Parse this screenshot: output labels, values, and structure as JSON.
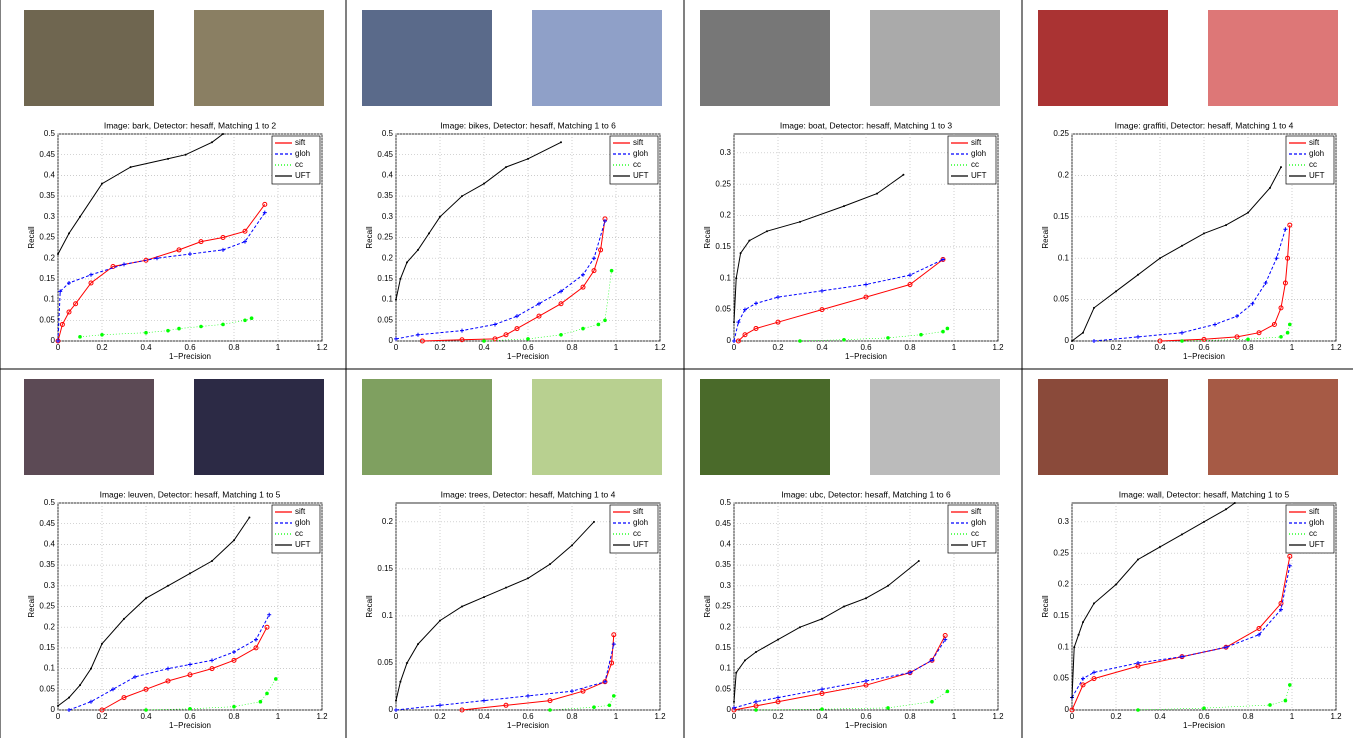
{
  "chart_data": [
    {
      "type": "line",
      "title": "Image: bark, Detector: hesaff, Matching 1 to 2",
      "xlabel": "1−Precision",
      "ylabel": "Recall",
      "xlim": [
        0,
        1.2
      ],
      "xticks": [
        0,
        0.2,
        0.4,
        0.6,
        0.8,
        1,
        1.2
      ],
      "ylim": [
        0,
        0.5
      ],
      "yticks": [
        0,
        0.05,
        0.1,
        0.15,
        0.2,
        0.25,
        0.3,
        0.35,
        0.4,
        0.45,
        0.5
      ],
      "grid": true,
      "legend": "upper right",
      "series": [
        {
          "name": "sift",
          "color": "#ff0000",
          "x": [
            0,
            0.02,
            0.05,
            0.08,
            0.15,
            0.25,
            0.4,
            0.55,
            0.65,
            0.75,
            0.85,
            0.94
          ],
          "values": [
            0,
            0.04,
            0.07,
            0.09,
            0.14,
            0.18,
            0.195,
            0.22,
            0.24,
            0.25,
            0.265,
            0.33
          ]
        },
        {
          "name": "gloh",
          "color": "#0000ff",
          "x": [
            0,
            0.01,
            0.05,
            0.15,
            0.3,
            0.45,
            0.6,
            0.75,
            0.85,
            0.94
          ],
          "values": [
            0,
            0.12,
            0.14,
            0.16,
            0.185,
            0.2,
            0.21,
            0.22,
            0.24,
            0.31
          ]
        },
        {
          "name": "cc",
          "color": "#00ff00",
          "x": [
            0.1,
            0.2,
            0.4,
            0.5,
            0.55,
            0.65,
            0.75,
            0.85,
            0.88
          ],
          "values": [
            0.01,
            0.015,
            0.02,
            0.025,
            0.03,
            0.035,
            0.04,
            0.05,
            0.055
          ]
        },
        {
          "name": "UFT",
          "color": "#000000",
          "x": [
            0,
            0.05,
            0.1,
            0.2,
            0.33,
            0.5,
            0.58,
            0.7,
            0.75
          ],
          "values": [
            0.21,
            0.26,
            0.3,
            0.38,
            0.42,
            0.44,
            0.45,
            0.48,
            0.5
          ]
        }
      ]
    },
    {
      "type": "line",
      "title": "Image: bikes, Detector: hesaff, Matching 1 to 6",
      "xlabel": "1−Precision",
      "ylabel": "Recall",
      "xlim": [
        0,
        1.2
      ],
      "xticks": [
        0,
        0.2,
        0.4,
        0.6,
        0.8,
        1,
        1.2
      ],
      "ylim": [
        0,
        0.5
      ],
      "yticks": [
        0,
        0.05,
        0.1,
        0.15,
        0.2,
        0.25,
        0.3,
        0.35,
        0.4,
        0.45,
        0.5
      ],
      "grid": true,
      "legend": "upper right",
      "series": [
        {
          "name": "sift",
          "color": "#ff0000",
          "x": [
            0.12,
            0.3,
            0.45,
            0.5,
            0.55,
            0.65,
            0.75,
            0.85,
            0.9,
            0.93,
            0.95
          ],
          "values": [
            0,
            0.003,
            0.005,
            0.015,
            0.03,
            0.06,
            0.09,
            0.13,
            0.17,
            0.22,
            0.295
          ]
        },
        {
          "name": "gloh",
          "color": "#0000ff",
          "x": [
            0,
            0.1,
            0.3,
            0.45,
            0.55,
            0.65,
            0.75,
            0.85,
            0.9,
            0.95
          ],
          "values": [
            0.005,
            0.015,
            0.025,
            0.04,
            0.06,
            0.09,
            0.12,
            0.16,
            0.2,
            0.29
          ]
        },
        {
          "name": "cc",
          "color": "#00ff00",
          "x": [
            0.4,
            0.6,
            0.75,
            0.85,
            0.92,
            0.95,
            0.98
          ],
          "values": [
            0,
            0.005,
            0.015,
            0.03,
            0.04,
            0.05,
            0.17
          ]
        },
        {
          "name": "UFT",
          "color": "#000000",
          "x": [
            0,
            0.02,
            0.05,
            0.1,
            0.15,
            0.2,
            0.3,
            0.4,
            0.5,
            0.6,
            0.75
          ],
          "values": [
            0.1,
            0.15,
            0.19,
            0.22,
            0.26,
            0.3,
            0.35,
            0.38,
            0.42,
            0.44,
            0.48
          ]
        }
      ]
    },
    {
      "type": "line",
      "title": "Image: boat, Detector: hesaff, Matching 1 to 3",
      "xlabel": "1−Precision",
      "ylabel": "Recall",
      "xlim": [
        0,
        1.2
      ],
      "xticks": [
        0,
        0.2,
        0.4,
        0.6,
        0.8,
        1,
        1.2
      ],
      "ylim": [
        0,
        0.33
      ],
      "yticks": [
        0,
        0.05,
        0.1,
        0.15,
        0.2,
        0.25,
        0.3
      ],
      "grid": true,
      "legend": "upper right",
      "series": [
        {
          "name": "sift",
          "color": "#ff0000",
          "x": [
            0.02,
            0.05,
            0.1,
            0.2,
            0.4,
            0.6,
            0.8,
            0.95
          ],
          "values": [
            0,
            0.01,
            0.02,
            0.03,
            0.05,
            0.07,
            0.09,
            0.13
          ]
        },
        {
          "name": "gloh",
          "color": "#0000ff",
          "x": [
            0,
            0.02,
            0.05,
            0.1,
            0.2,
            0.4,
            0.6,
            0.8,
            0.95
          ],
          "values": [
            0,
            0.03,
            0.05,
            0.06,
            0.07,
            0.08,
            0.09,
            0.105,
            0.13
          ]
        },
        {
          "name": "cc",
          "color": "#00ff00",
          "x": [
            0.3,
            0.5,
            0.7,
            0.85,
            0.95,
            0.97
          ],
          "values": [
            0,
            0.002,
            0.005,
            0.01,
            0.015,
            0.02
          ]
        },
        {
          "name": "UFT",
          "color": "#000000",
          "x": [
            0,
            0.01,
            0.03,
            0.07,
            0.15,
            0.3,
            0.5,
            0.65,
            0.77
          ],
          "values": [
            0.03,
            0.1,
            0.14,
            0.16,
            0.175,
            0.19,
            0.215,
            0.235,
            0.265
          ]
        }
      ]
    },
    {
      "type": "line",
      "title": "Image: graffiti, Detector: hesaff, Matching 1 to 4",
      "xlabel": "1−Precision",
      "ylabel": "Recall",
      "xlim": [
        0,
        1.2
      ],
      "xticks": [
        0,
        0.2,
        0.4,
        0.6,
        0.8,
        1,
        1.2
      ],
      "ylim": [
        0,
        0.25
      ],
      "yticks": [
        0,
        0.05,
        0.1,
        0.15,
        0.2,
        0.25
      ],
      "grid": true,
      "legend": "upper right",
      "series": [
        {
          "name": "sift",
          "color": "#ff0000",
          "x": [
            0.4,
            0.6,
            0.75,
            0.85,
            0.92,
            0.95,
            0.97,
            0.98,
            0.99
          ],
          "values": [
            0,
            0.002,
            0.005,
            0.01,
            0.02,
            0.04,
            0.07,
            0.1,
            0.14
          ]
        },
        {
          "name": "gloh",
          "color": "#0000ff",
          "x": [
            0.1,
            0.3,
            0.5,
            0.65,
            0.75,
            0.82,
            0.88,
            0.93,
            0.97
          ],
          "values": [
            0,
            0.005,
            0.01,
            0.02,
            0.03,
            0.045,
            0.07,
            0.1,
            0.135
          ]
        },
        {
          "name": "cc",
          "color": "#00ff00",
          "x": [
            0.5,
            0.8,
            0.95,
            0.98,
            0.99
          ],
          "values": [
            0,
            0.002,
            0.005,
            0.01,
            0.02
          ]
        },
        {
          "name": "UFT",
          "color": "#000000",
          "x": [
            0,
            0.05,
            0.1,
            0.2,
            0.3,
            0.4,
            0.5,
            0.6,
            0.7,
            0.8,
            0.9,
            0.95
          ],
          "values": [
            0,
            0.01,
            0.04,
            0.06,
            0.08,
            0.1,
            0.115,
            0.13,
            0.14,
            0.155,
            0.185,
            0.21
          ]
        }
      ]
    },
    {
      "type": "line",
      "title": "Image: leuven, Detector: hesaff, Matching 1 to 5",
      "xlabel": "1−Precision",
      "ylabel": "Recall",
      "xlim": [
        0,
        1.2
      ],
      "xticks": [
        0,
        0.2,
        0.4,
        0.6,
        0.8,
        1,
        1.2
      ],
      "ylim": [
        0,
        0.5
      ],
      "yticks": [
        0,
        0.05,
        0.1,
        0.15,
        0.2,
        0.25,
        0.3,
        0.35,
        0.4,
        0.45,
        0.5
      ],
      "grid": true,
      "legend": "upper right",
      "series": [
        {
          "name": "sift",
          "color": "#ff0000",
          "x": [
            0.2,
            0.3,
            0.4,
            0.5,
            0.6,
            0.7,
            0.8,
            0.9,
            0.95
          ],
          "values": [
            0,
            0.03,
            0.05,
            0.07,
            0.085,
            0.1,
            0.12,
            0.15,
            0.2
          ]
        },
        {
          "name": "gloh",
          "color": "#0000ff",
          "x": [
            0.05,
            0.15,
            0.25,
            0.35,
            0.5,
            0.6,
            0.7,
            0.8,
            0.9,
            0.96
          ],
          "values": [
            0,
            0.02,
            0.05,
            0.08,
            0.1,
            0.11,
            0.12,
            0.14,
            0.17,
            0.23
          ]
        },
        {
          "name": "cc",
          "color": "#00ff00",
          "x": [
            0.4,
            0.6,
            0.8,
            0.92,
            0.95,
            0.99
          ],
          "values": [
            0,
            0.003,
            0.008,
            0.02,
            0.04,
            0.075
          ]
        },
        {
          "name": "UFT",
          "color": "#000000",
          "x": [
            0,
            0.05,
            0.1,
            0.15,
            0.2,
            0.3,
            0.4,
            0.5,
            0.6,
            0.7,
            0.8,
            0.87
          ],
          "values": [
            0.01,
            0.03,
            0.06,
            0.1,
            0.16,
            0.22,
            0.27,
            0.3,
            0.33,
            0.36,
            0.41,
            0.465
          ]
        }
      ]
    },
    {
      "type": "line",
      "title": "Image: trees, Detector: hesaff, Matching 1 to 4",
      "xlabel": "1−Precision",
      "ylabel": "Recall",
      "xlim": [
        0,
        1.2
      ],
      "xticks": [
        0,
        0.2,
        0.4,
        0.6,
        0.8,
        1,
        1.2
      ],
      "ylim": [
        0,
        0.22
      ],
      "yticks": [
        0,
        0.05,
        0.1,
        0.15,
        0.2
      ],
      "grid": true,
      "legend": "upper right",
      "series": [
        {
          "name": "sift",
          "color": "#ff0000",
          "x": [
            0.3,
            0.5,
            0.7,
            0.85,
            0.95,
            0.98,
            0.99
          ],
          "values": [
            0,
            0.005,
            0.01,
            0.02,
            0.03,
            0.05,
            0.08
          ]
        },
        {
          "name": "gloh",
          "color": "#0000ff",
          "x": [
            0,
            0.2,
            0.4,
            0.6,
            0.8,
            0.95,
            0.99
          ],
          "values": [
            0,
            0.005,
            0.01,
            0.015,
            0.02,
            0.03,
            0.07
          ]
        },
        {
          "name": "cc",
          "color": "#00ff00",
          "x": [
            0.7,
            0.9,
            0.97,
            0.99
          ],
          "values": [
            0,
            0.003,
            0.005,
            0.015
          ]
        },
        {
          "name": "UFT",
          "color": "#000000",
          "x": [
            0,
            0.02,
            0.05,
            0.1,
            0.2,
            0.3,
            0.4,
            0.5,
            0.6,
            0.7,
            0.8,
            0.9
          ],
          "values": [
            0.01,
            0.03,
            0.05,
            0.07,
            0.095,
            0.11,
            0.12,
            0.13,
            0.14,
            0.155,
            0.175,
            0.2
          ]
        }
      ]
    },
    {
      "type": "line",
      "title": "Image: ubc, Detector: hesaff, Matching 1 to 6",
      "xlabel": "1−Precision",
      "ylabel": "Recall",
      "xlim": [
        0,
        1.2
      ],
      "xticks": [
        0,
        0.2,
        0.4,
        0.6,
        0.8,
        1,
        1.2
      ],
      "ylim": [
        0,
        0.5
      ],
      "yticks": [
        0,
        0.05,
        0.1,
        0.15,
        0.2,
        0.25,
        0.3,
        0.35,
        0.4,
        0.45,
        0.5
      ],
      "grid": true,
      "legend": "upper right",
      "series": [
        {
          "name": "sift",
          "color": "#ff0000",
          "x": [
            0,
            0.1,
            0.2,
            0.4,
            0.6,
            0.8,
            0.9,
            0.96
          ],
          "values": [
            0,
            0.01,
            0.02,
            0.04,
            0.06,
            0.09,
            0.12,
            0.18
          ]
        },
        {
          "name": "gloh",
          "color": "#0000ff",
          "x": [
            0,
            0.1,
            0.2,
            0.4,
            0.6,
            0.8,
            0.9,
            0.96
          ],
          "values": [
            0.005,
            0.02,
            0.03,
            0.05,
            0.07,
            0.09,
            0.12,
            0.17
          ]
        },
        {
          "name": "cc",
          "color": "#00ff00",
          "x": [
            0.1,
            0.4,
            0.7,
            0.9,
            0.97
          ],
          "values": [
            0,
            0.002,
            0.005,
            0.02,
            0.045
          ]
        },
        {
          "name": "UFT",
          "color": "#000000",
          "x": [
            0,
            0.01,
            0.05,
            0.1,
            0.2,
            0.3,
            0.4,
            0.5,
            0.6,
            0.7,
            0.84
          ],
          "values": [
            0.02,
            0.09,
            0.12,
            0.14,
            0.17,
            0.2,
            0.22,
            0.25,
            0.27,
            0.3,
            0.36
          ]
        }
      ]
    },
    {
      "type": "line",
      "title": "Image: wall, Detector: hesaff, Matching 1 to 5",
      "xlabel": "1−Precision",
      "ylabel": "Recall",
      "xlim": [
        0,
        1.2
      ],
      "xticks": [
        0,
        0.2,
        0.4,
        0.6,
        0.8,
        1,
        1.2
      ],
      "ylim": [
        0,
        0.33
      ],
      "yticks": [
        0,
        0.05,
        0.1,
        0.15,
        0.2,
        0.25,
        0.3
      ],
      "grid": true,
      "legend": "upper right",
      "series": [
        {
          "name": "sift",
          "color": "#ff0000",
          "x": [
            0,
            0.05,
            0.1,
            0.3,
            0.5,
            0.7,
            0.85,
            0.95,
            0.99
          ],
          "values": [
            0,
            0.04,
            0.05,
            0.07,
            0.085,
            0.1,
            0.13,
            0.17,
            0.245
          ]
        },
        {
          "name": "gloh",
          "color": "#0000ff",
          "x": [
            0,
            0.05,
            0.1,
            0.3,
            0.5,
            0.7,
            0.85,
            0.95,
            0.99
          ],
          "values": [
            0.02,
            0.05,
            0.06,
            0.075,
            0.085,
            0.1,
            0.12,
            0.16,
            0.23
          ]
        },
        {
          "name": "cc",
          "color": "#00ff00",
          "x": [
            0.3,
            0.6,
            0.9,
            0.97,
            0.99
          ],
          "values": [
            0,
            0.003,
            0.008,
            0.015,
            0.04
          ]
        },
        {
          "name": "UFT",
          "color": "#000000",
          "x": [
            0,
            0.01,
            0.03,
            0.05,
            0.1,
            0.2,
            0.3,
            0.4,
            0.5,
            0.6,
            0.7,
            0.74
          ],
          "values": [
            0.02,
            0.1,
            0.12,
            0.14,
            0.17,
            0.2,
            0.24,
            0.26,
            0.28,
            0.3,
            0.32,
            0.33
          ]
        }
      ]
    }
  ]
}
